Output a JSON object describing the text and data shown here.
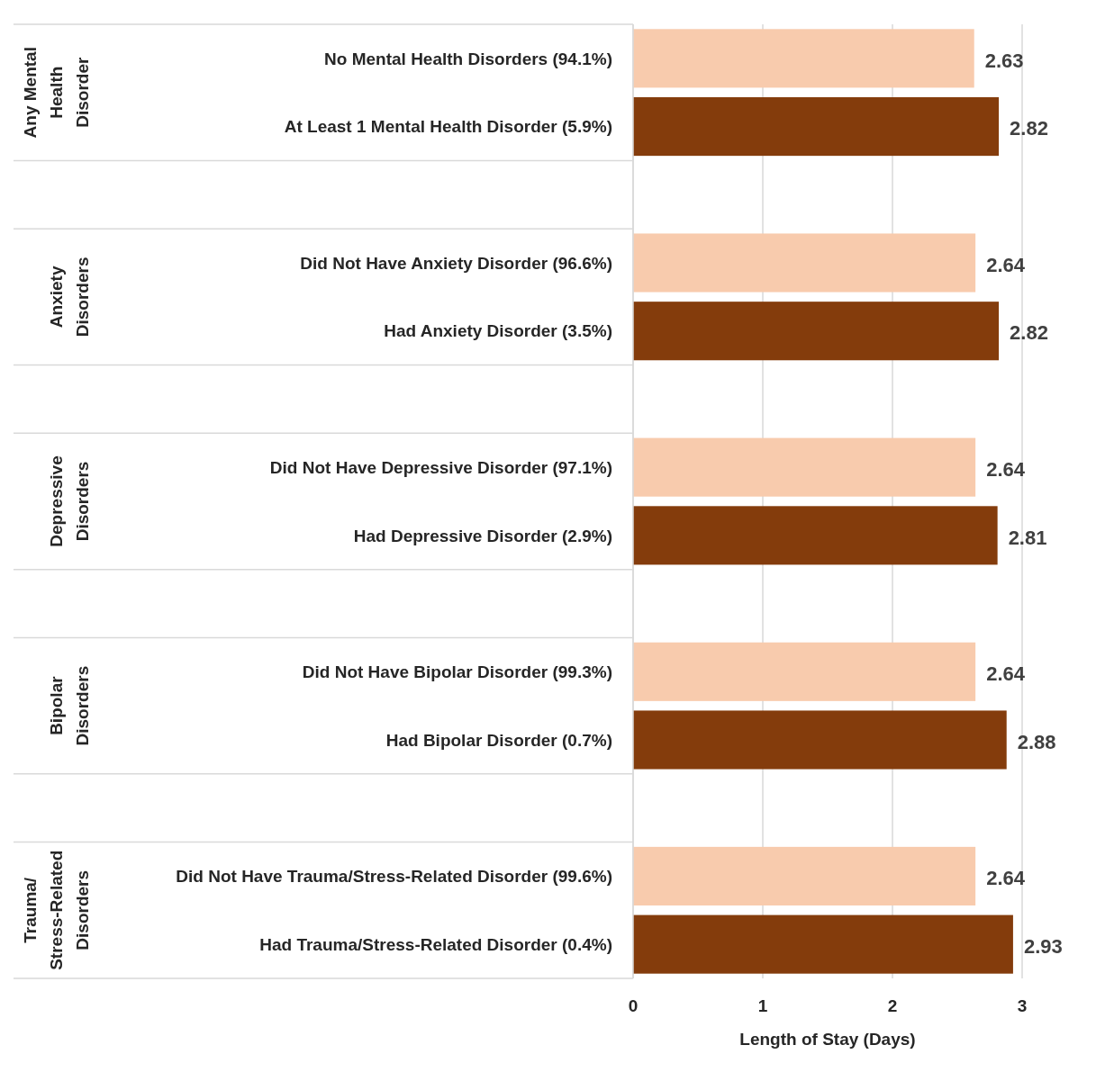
{
  "chart_data": {
    "type": "bar",
    "orientation": "horizontal",
    "xlabel": "Length of Stay (Days)",
    "categories": [
      "No Mental Health Disorders (94.1%)",
      "At Least 1 Mental Health Disorder (5.9%)",
      null,
      "Did Not Have Anxiety Disorder (96.6%)",
      "Had Anxiety Disorder (3.5%)",
      null,
      "Did Not Have Depressive Disorder (97.1%)",
      "Had Depressive Disorder (2.9%)",
      null,
      "Did Not Have Bipolar Disorder (99.3%)",
      "Had Bipolar Disorder (0.7%)",
      null,
      "Did Not Have Trauma/Stress-Related Disorder (99.6%)",
      "Had Trauma/Stress-Related Disorder (0.4%)"
    ],
    "values": [
      2.63,
      2.82,
      null,
      2.64,
      2.82,
      null,
      2.64,
      2.81,
      null,
      2.64,
      2.88,
      null,
      2.64,
      2.93
    ],
    "colors": [
      "#f8cbad",
      "#843c0c",
      null,
      "#f8cbad",
      "#843c0c",
      null,
      "#f8cbad",
      "#843c0c",
      null,
      "#f8cbad",
      "#843c0c",
      null,
      "#f8cbad",
      "#843c0c"
    ],
    "xlim": [
      0,
      3
    ],
    "xticks": [
      0,
      1,
      2,
      3
    ],
    "grid": "x",
    "data_labels": true,
    "annotations": [
      "Any Mental Health Disorder",
      "Anxiety Disorders",
      "Depressive Disorders",
      "Bipolar Disorders",
      "Trauma/Stress-Related Disorders"
    ]
  }
}
